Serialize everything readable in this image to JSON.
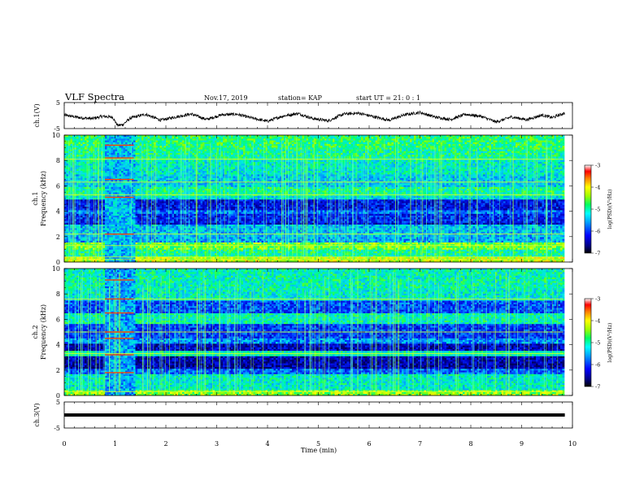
{
  "header": {
    "title": "VLF Spectra",
    "date": "Nov.17, 2019",
    "station": "station= KAP",
    "start": "start  UT =   21: 0  : 1"
  },
  "chart_data": {
    "type": "heatmap",
    "title": "VLF Spectra",
    "xlabel": "Time  (min)",
    "xlim": [
      0,
      10
    ],
    "xticks": [
      "0",
      "1",
      "2",
      "3",
      "4",
      "5",
      "6",
      "7",
      "8",
      "9",
      "10"
    ],
    "panels": [
      {
        "id": "ch1v",
        "type": "line",
        "ylabel": "ch.1(V)",
        "ylim": [
          -5,
          5
        ],
        "yticks": [
          "5",
          "-5"
        ],
        "data_x_end": 9.85,
        "series": [
          {
            "values_description_points": [
              [
                0.0,
                0.2
              ],
              [
                0.3,
                -0.8
              ],
              [
                0.55,
                -1.2
              ],
              [
                0.75,
                -0.3
              ],
              [
                0.95,
                -0.6
              ],
              [
                1.05,
                -3.8
              ],
              [
                1.15,
                -3.5
              ],
              [
                1.3,
                -1.0
              ],
              [
                1.6,
                0.5
              ],
              [
                1.9,
                -1.8
              ],
              [
                2.2,
                -0.5
              ],
              [
                2.5,
                0.6
              ],
              [
                2.8,
                -1.5
              ],
              [
                3.1,
                0.3
              ],
              [
                3.4,
                0.5
              ],
              [
                3.7,
                -1.0
              ],
              [
                4.0,
                -2.2
              ],
              [
                4.3,
                -0.2
              ],
              [
                4.6,
                0.8
              ],
              [
                4.9,
                -1.2
              ],
              [
                5.2,
                -2.0
              ],
              [
                5.5,
                0.6
              ],
              [
                5.8,
                0.9
              ],
              [
                6.1,
                -0.5
              ],
              [
                6.4,
                -1.8
              ],
              [
                6.7,
                0.3
              ],
              [
                7.0,
                1.2
              ],
              [
                7.3,
                -0.6
              ],
              [
                7.6,
                -1.5
              ],
              [
                7.9,
                0.5
              ],
              [
                8.2,
                -0.3
              ],
              [
                8.5,
                -2.5
              ],
              [
                8.8,
                -0.5
              ],
              [
                9.1,
                -1.6
              ],
              [
                9.4,
                0.2
              ],
              [
                9.6,
                -0.8
              ],
              [
                9.85,
                1.0
              ]
            ]
          }
        ]
      },
      {
        "id": "ch1",
        "type": "heatmap",
        "ylabel_line1": "ch.1",
        "ylabel_line2": "Frequency (kHz)",
        "ylim": [
          0,
          10
        ],
        "yticks": [
          "0",
          "2",
          "4",
          "6",
          "8",
          "10"
        ],
        "colorbar": {
          "label": "log(PSD)(V²/Hz)",
          "range": [
            -7,
            -3
          ],
          "ticks": [
            "-3",
            "-4",
            "-5",
            "-6",
            "-7"
          ]
        },
        "bands": [
          {
            "f": [
              0.0,
              0.5
            ],
            "level": -4.4
          },
          {
            "f": [
              0.5,
              1.0
            ],
            "level": -5.1
          },
          {
            "f": [
              1.0,
              1.6
            ],
            "level": -4.7
          },
          {
            "f": [
              1.6,
              2.1
            ],
            "level": -5.7
          },
          {
            "f": [
              2.1,
              3.0
            ],
            "level": -5.6
          },
          {
            "f": [
              3.0,
              3.2
            ],
            "level": -6.5
          },
          {
            "f": [
              3.2,
              3.8
            ],
            "level": -6.3
          },
          {
            "f": [
              3.8,
              4.2
            ],
            "level": -5.9
          },
          {
            "f": [
              4.2,
              5.0
            ],
            "level": -6.4
          },
          {
            "f": [
              5.0,
              5.3
            ],
            "level": -5.4
          },
          {
            "f": [
              5.3,
              6.0
            ],
            "level": -5.1
          },
          {
            "f": [
              6.0,
              7.0
            ],
            "level": -5.5
          },
          {
            "f": [
              7.0,
              8.1
            ],
            "level": -5.3
          },
          {
            "f": [
              8.1,
              9.0
            ],
            "level": -5.1
          },
          {
            "f": [
              9.0,
              10.0
            ],
            "level": -5.0
          }
        ],
        "lines_khz": [
          0.2,
          0.4,
          1.3,
          2.2,
          5.3,
          6.3,
          8.1
        ],
        "interference": {
          "t": [
            0.8,
            1.37
          ],
          "level": -5.6,
          "lines_khz": [
            2.2,
            5.1,
            6.5,
            8.2,
            9.2
          ]
        }
      },
      {
        "id": "ch2",
        "type": "heatmap",
        "ylabel_line1": "ch.2",
        "ylabel_line2": "Frequency (kHz)",
        "ylim": [
          0,
          10
        ],
        "yticks": [
          "0",
          "2",
          "4",
          "6",
          "8",
          "10"
        ],
        "colorbar": {
          "label": "log(PSD)(V²/Hz)",
          "range": [
            -7,
            -3
          ],
          "ticks": [
            "-3",
            "-4",
            "-5",
            "-6",
            "-7"
          ]
        },
        "bands": [
          {
            "f": [
              0.0,
              0.5
            ],
            "level": -4.6
          },
          {
            "f": [
              0.5,
              1.8
            ],
            "level": -5.3
          },
          {
            "f": [
              1.8,
              2.2
            ],
            "level": -6.0
          },
          {
            "f": [
              2.2,
              3.1
            ],
            "level": -6.7
          },
          {
            "f": [
              3.1,
              3.6
            ],
            "level": -5.2
          },
          {
            "f": [
              3.6,
              4.1
            ],
            "level": -6.6
          },
          {
            "f": [
              4.1,
              4.6
            ],
            "level": -5.8
          },
          {
            "f": [
              4.6,
              5.7
            ],
            "level": -6.2
          },
          {
            "f": [
              5.7,
              6.5
            ],
            "level": -5.2
          },
          {
            "f": [
              6.5,
              7.5
            ],
            "level": -6.1
          },
          {
            "f": [
              7.5,
              8.4
            ],
            "level": -5.3
          },
          {
            "f": [
              8.4,
              10.0
            ],
            "level": -5.2
          }
        ],
        "lines_khz": [
          0.3,
          3.3,
          5.0,
          7.6
        ],
        "interference": {
          "t": [
            0.8,
            1.37
          ],
          "level": -5.7,
          "lines_khz": [
            1.8,
            3.2,
            4.5,
            5.0,
            6.5,
            7.6,
            9.1
          ]
        }
      },
      {
        "id": "ch3v",
        "type": "line",
        "ylabel": "ch.3(V)",
        "ylim": [
          -5,
          5
        ],
        "yticks": [
          "5",
          "-5"
        ],
        "data_x_end": 9.85,
        "series": [
          {
            "constant": 0
          }
        ]
      }
    ]
  },
  "colors": {
    "colormap": [
      "#000080",
      "#0000ff",
      "#00a0ff",
      "#00ffff",
      "#00ff60",
      "#60ff00",
      "#ffff00",
      "#ff8000",
      "#ff0000",
      "#800000"
    ]
  }
}
